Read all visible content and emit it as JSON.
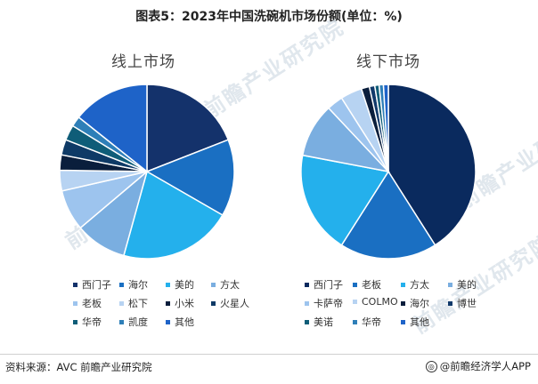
{
  "title": "图表5：2023年中国洗碗机市场份额(单位：%)",
  "source": "资料来源：AVC 前瞻产业研究院",
  "brand": "@前瞻经济学人APP",
  "watermark": "前瞻产业研究院",
  "chart_data": [
    {
      "type": "pie",
      "title": "线上市场",
      "legend_position": "bottom",
      "slices": [
        {
          "name": "西门子",
          "value": 20,
          "color": "#14326b"
        },
        {
          "name": "海尔",
          "value": 15,
          "color": "#1a6fc2"
        },
        {
          "name": "美的",
          "value": 22,
          "color": "#24b0ec"
        },
        {
          "name": "方太",
          "value": 10,
          "color": "#7aaee0"
        },
        {
          "name": "老板",
          "value": 8,
          "color": "#9dc4ee"
        },
        {
          "name": "松下",
          "value": 4,
          "color": "#b7d3f2"
        },
        {
          "name": "小米",
          "value": 3,
          "color": "#0a1e3c"
        },
        {
          "name": "火星人",
          "value": 3,
          "color": "#0e3a66"
        },
        {
          "name": "华帝",
          "value": 3,
          "color": "#0f5d78"
        },
        {
          "name": "凯度",
          "value": 2,
          "color": "#2e7fb8"
        },
        {
          "name": "其他",
          "value": 15,
          "color": "#1e63c8"
        }
      ]
    },
    {
      "type": "pie",
      "title": "线下市场",
      "legend_position": "bottom",
      "slices": [
        {
          "name": "西门子",
          "value": 41,
          "color": "#0a2a5e"
        },
        {
          "name": "老板",
          "value": 18,
          "color": "#1a6fc2"
        },
        {
          "name": "方太",
          "value": 19,
          "color": "#24b0ec"
        },
        {
          "name": "美的",
          "value": 10,
          "color": "#7aaee0"
        },
        {
          "name": "卡萨帝",
          "value": 3,
          "color": "#9dc4ee"
        },
        {
          "name": "COLMO",
          "value": 4,
          "color": "#b7d3f2"
        },
        {
          "name": "海尔",
          "value": 1.5,
          "color": "#0a1e3c"
        },
        {
          "name": "博世",
          "value": 1,
          "color": "#10396a"
        },
        {
          "name": "美诺",
          "value": 0.8,
          "color": "#0f5d78"
        },
        {
          "name": "华帝",
          "value": 0.8,
          "color": "#2e7fb8"
        },
        {
          "name": "其他",
          "value": 0.9,
          "color": "#1e63c8"
        }
      ]
    }
  ]
}
